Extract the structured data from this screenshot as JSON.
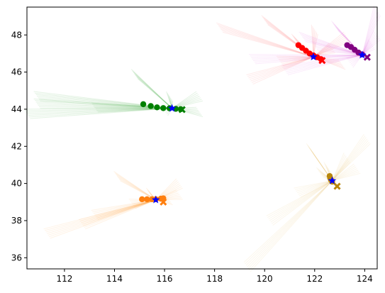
{
  "chart_data": {
    "type": "scatter",
    "xlim": [
      110.5,
      124.5
    ],
    "ylim": [
      35.4,
      49.5
    ],
    "x_ticks": [
      112,
      114,
      116,
      118,
      120,
      122,
      124
    ],
    "y_ticks": [
      36,
      38,
      40,
      42,
      44,
      46,
      48
    ],
    "x_tick_labels": [
      "112",
      "114",
      "116",
      "118",
      "120",
      "122",
      "124"
    ],
    "y_tick_labels": [
      "36",
      "38",
      "40",
      "42",
      "44",
      "46",
      "48"
    ],
    "grid": false,
    "legend": "none",
    "marker_color": "#0000ff",
    "series": [
      {
        "color": "#008000",
        "fan_color": "#2ca02c",
        "track": [
          [
            115.15,
            44.27
          ],
          [
            115.45,
            44.17
          ],
          [
            115.7,
            44.1
          ],
          [
            115.95,
            44.06
          ],
          [
            116.2,
            44.05
          ],
          [
            116.45,
            44.02
          ],
          [
            116.65,
            44.0
          ]
        ],
        "end_marker": [
          116.7,
          43.98
        ],
        "current": [
          116.3,
          44.05
        ],
        "fan": [
          [
            110.9,
            44.7
          ],
          [
            117.4,
            44.7
          ],
          [
            117.4,
            43.85
          ],
          [
            110.5,
            43.75
          ],
          [
            110.9,
            44.3
          ],
          [
            114.8,
            45.9
          ],
          [
            116.2,
            44.7
          ],
          [
            113.2,
            44.1
          ],
          [
            116.0,
            43.9
          ]
        ]
      },
      {
        "color": "#ff7f0e",
        "fan_color": "#ff9f40",
        "track": [
          [
            115.1,
            39.15
          ],
          [
            115.3,
            39.15
          ],
          [
            115.5,
            39.15
          ],
          [
            115.65,
            39.15
          ],
          [
            115.85,
            39.18
          ],
          [
            115.95,
            39.2
          ]
        ],
        "end_marker": [
          115.95,
          39.0
        ],
        "current": [
          115.65,
          39.12
        ],
        "fan": [
          [
            111.3,
            37.3
          ],
          [
            113.2,
            38.3
          ],
          [
            116.6,
            40.0
          ],
          [
            116.6,
            39.4
          ],
          [
            114.1,
            40.4
          ],
          [
            115.4,
            39.5
          ],
          [
            116.2,
            39.1
          ],
          [
            112.7,
            37.8
          ],
          [
            114.7,
            38.9
          ]
        ]
      },
      {
        "color": "#b8860b",
        "fan_color": "#e6c46b",
        "track": [
          [
            122.6,
            40.4
          ],
          [
            122.62,
            40.3
          ],
          [
            122.65,
            40.2
          ],
          [
            122.7,
            40.1
          ]
        ],
        "end_marker": [
          122.9,
          39.85
        ],
        "current": [
          122.7,
          40.15
        ],
        "fan": [
          [
            119.3,
            35.5
          ],
          [
            120.2,
            38.0
          ],
          [
            121.3,
            39.5
          ],
          [
            122.5,
            40.9
          ],
          [
            124.1,
            42.4
          ],
          [
            123.3,
            41.4
          ],
          [
            121.8,
            41.9
          ],
          [
            122.2,
            40.6
          ],
          [
            123.7,
            40.8
          ]
        ]
      },
      {
        "color": "#ff0000",
        "fan_color": "#ff6666",
        "track": [
          [
            121.35,
            47.45
          ],
          [
            121.5,
            47.3
          ],
          [
            121.65,
            47.15
          ],
          [
            121.8,
            47.0
          ],
          [
            121.95,
            46.9
          ],
          [
            122.1,
            46.8
          ],
          [
            122.25,
            46.7
          ]
        ],
        "end_marker": [
          122.3,
          46.62
        ],
        "current": [
          121.95,
          46.82
        ],
        "fan": [
          [
            118.2,
            48.4
          ],
          [
            120.0,
            48.8
          ],
          [
            123.3,
            47.9
          ],
          [
            119.4,
            45.6
          ],
          [
            122.7,
            47.3
          ],
          [
            121.2,
            47.8
          ],
          [
            120.6,
            46.6
          ],
          [
            123.1,
            46.4
          ],
          [
            122.0,
            48.3
          ]
        ]
      },
      {
        "color": "#800080",
        "fan_color": "#e066e0",
        "track": [
          [
            123.3,
            47.45
          ],
          [
            123.45,
            47.35
          ],
          [
            123.6,
            47.2
          ],
          [
            123.75,
            47.05
          ],
          [
            123.9,
            46.95
          ]
        ],
        "end_marker": [
          124.1,
          46.8
        ],
        "current": [
          123.9,
          46.92
        ],
        "fan": [
          [
            119.5,
            46.7
          ],
          [
            122.0,
            47.4
          ],
          [
            124.5,
            49.3
          ],
          [
            124.5,
            48.0
          ],
          [
            122.8,
            48.5
          ],
          [
            120.8,
            46.1
          ],
          [
            123.4,
            46.5
          ],
          [
            124.3,
            47.5
          ],
          [
            121.5,
            47.9
          ]
        ]
      }
    ]
  }
}
